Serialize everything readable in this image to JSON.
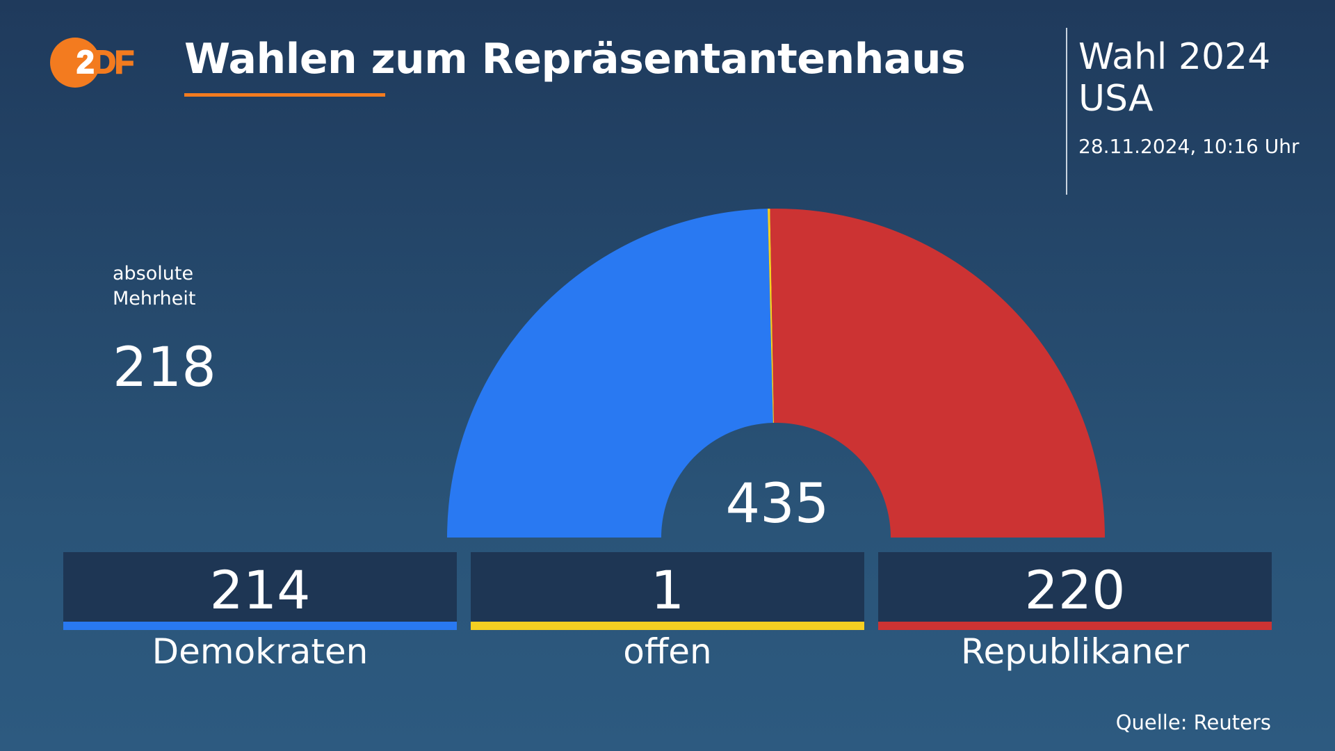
{
  "logo": {
    "text_on_circle": "2",
    "text_rest": "DF"
  },
  "title": "Wahlen zum Repräsentantenhaus",
  "header_right": {
    "line1": "Wahl 2024",
    "line2": "USA",
    "date": "28.11.2024, 10:16 Uhr"
  },
  "majority": {
    "label_line1": "absolute",
    "label_line2": "Mehrheit",
    "value": "218"
  },
  "colors": {
    "brand": "#f37b1f",
    "democrats": "#2979f2",
    "open": "#f5cf22",
    "republicans": "#cc3333",
    "card_bg": "#1e3654"
  },
  "chart_data": {
    "type": "pie",
    "subtype": "semicircle-donut",
    "total": 435,
    "categories": [
      "Demokraten",
      "offen",
      "Republikaner"
    ],
    "values": [
      214,
      1,
      220
    ],
    "colors": [
      "#2979f2",
      "#f5cf22",
      "#cc3333"
    ]
  },
  "total_label": "435",
  "parties": [
    {
      "value": "214",
      "label": "Demokraten"
    },
    {
      "value": "1",
      "label": "offen"
    },
    {
      "value": "220",
      "label": "Republikaner"
    }
  ],
  "source": "Quelle: Reuters"
}
